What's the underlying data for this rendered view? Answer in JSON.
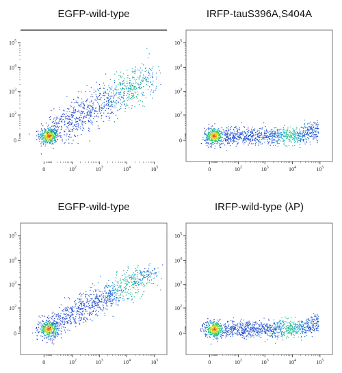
{
  "chart_data": [
    {
      "type": "scatter",
      "title": "EGFP-wild-type",
      "xlabel": "",
      "ylabel": "",
      "x_scale": "biexponential",
      "y_scale": "biexponential",
      "x_ticks": [
        "0",
        "10^2",
        "10^3",
        "10^4",
        "10^5"
      ],
      "y_ticks": [
        "0",
        "10^2",
        "10^3",
        "10^4",
        "10^5"
      ],
      "xlim": [
        -100,
        200000
      ],
      "ylim": [
        -100,
        200000
      ],
      "color_scale": "density (blue→green→yellow→red)",
      "clusters": [
        {
          "x_center": 5,
          "y_center": 5,
          "spread": "tight, high density"
        },
        {
          "x_center": 3000,
          "y_center": 500,
          "spread": "diagonal cloud, x 100–50000, y 30–3000"
        }
      ]
    },
    {
      "type": "scatter",
      "title": "IRFP-tauS396A,S404A",
      "xlabel": "",
      "ylabel": "",
      "x_scale": "biexponential",
      "y_scale": "biexponential",
      "x_ticks": [
        "0",
        "10^2",
        "10^3",
        "10^4",
        "10^5"
      ],
      "y_ticks": [
        "0",
        "10^2",
        "10^3",
        "10^4",
        "10^5"
      ],
      "xlim": [
        -100,
        200000
      ],
      "ylim": [
        -100,
        200000
      ],
      "color_scale": "density (blue→green→yellow→red)",
      "clusters": [
        {
          "x_center": 5,
          "y_center": 5,
          "spread": "tight, high density"
        },
        {
          "x_center": 3000,
          "y_center": 10,
          "spread": "flat band, x 100–100000, y ~0–100"
        }
      ]
    },
    {
      "type": "scatter",
      "title": "EGFP-wild-type",
      "xlabel": "",
      "ylabel": "",
      "x_scale": "biexponential",
      "y_scale": "biexponential",
      "x_ticks": [
        "0",
        "10^2",
        "10^3",
        "10^4",
        "10^5"
      ],
      "y_ticks": [
        "0",
        "10^2",
        "10^3",
        "10^4",
        "10^5"
      ],
      "xlim": [
        -100,
        200000
      ],
      "ylim": [
        -100,
        200000
      ],
      "color_scale": "density (blue→green→yellow→red)",
      "clusters": [
        {
          "x_center": 5,
          "y_center": 5,
          "spread": "tight, high density"
        },
        {
          "x_center": 10000,
          "y_center": 300,
          "spread": "diagonal cloud, x 100–80000, y 20–2000"
        }
      ]
    },
    {
      "type": "scatter",
      "title": "IRFP-wild-type (λP)",
      "xlabel": "",
      "ylabel": "",
      "x_scale": "biexponential",
      "y_scale": "biexponential",
      "x_ticks": [
        "0",
        "10^2",
        "10^3",
        "10^4",
        "10^5"
      ],
      "y_ticks": [
        "0",
        "10^2",
        "10^3",
        "10^4",
        "10^5"
      ],
      "xlim": [
        -100,
        200000
      ],
      "ylim": [
        -100,
        200000
      ],
      "color_scale": "density (blue→green→yellow→red)",
      "clusters": [
        {
          "x_center": 5,
          "y_center": 5,
          "spread": "tight, high density"
        },
        {
          "x_center": 3000,
          "y_center": 10,
          "spread": "flat band, x 100–100000, y ~0–100"
        }
      ]
    }
  ]
}
